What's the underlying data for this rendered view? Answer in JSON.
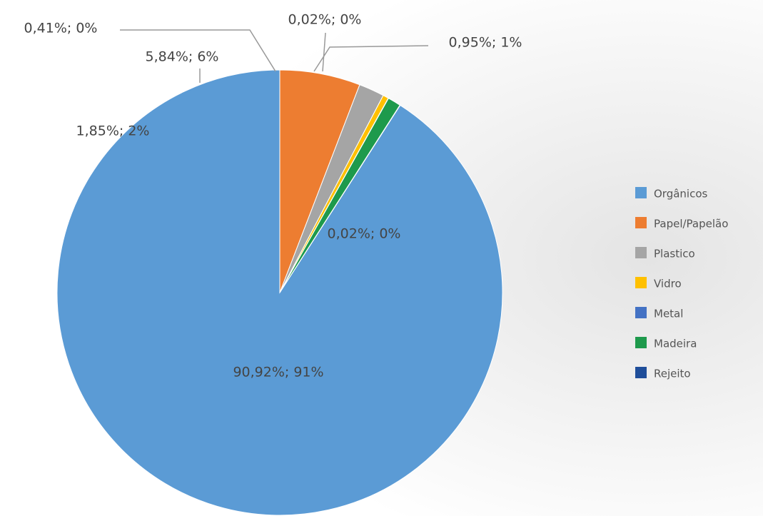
{
  "chart_data": {
    "type": "pie",
    "categories": [
      "Orgânicos",
      "Papel/Papelão",
      "Plastico",
      "Vidro",
      "Metal",
      "Madeira",
      "Rejeito"
    ],
    "values": [
      90.92,
      5.84,
      1.85,
      0.41,
      0.02,
      0.95,
      0.02
    ],
    "value_labels": [
      "90,92%; 91%",
      "5,84%; 6%",
      "1,85%; 2%",
      "0,41%; 0%",
      "0,02%; 0%",
      "0,95%; 1%",
      "0,02%; 0%"
    ],
    "colors": [
      "#5b9bd5",
      "#ed7d31",
      "#a5a5a5",
      "#ffc000",
      "#4472c4",
      "#1e9a4c",
      "#1f4e9a"
    ],
    "legend": "right"
  }
}
